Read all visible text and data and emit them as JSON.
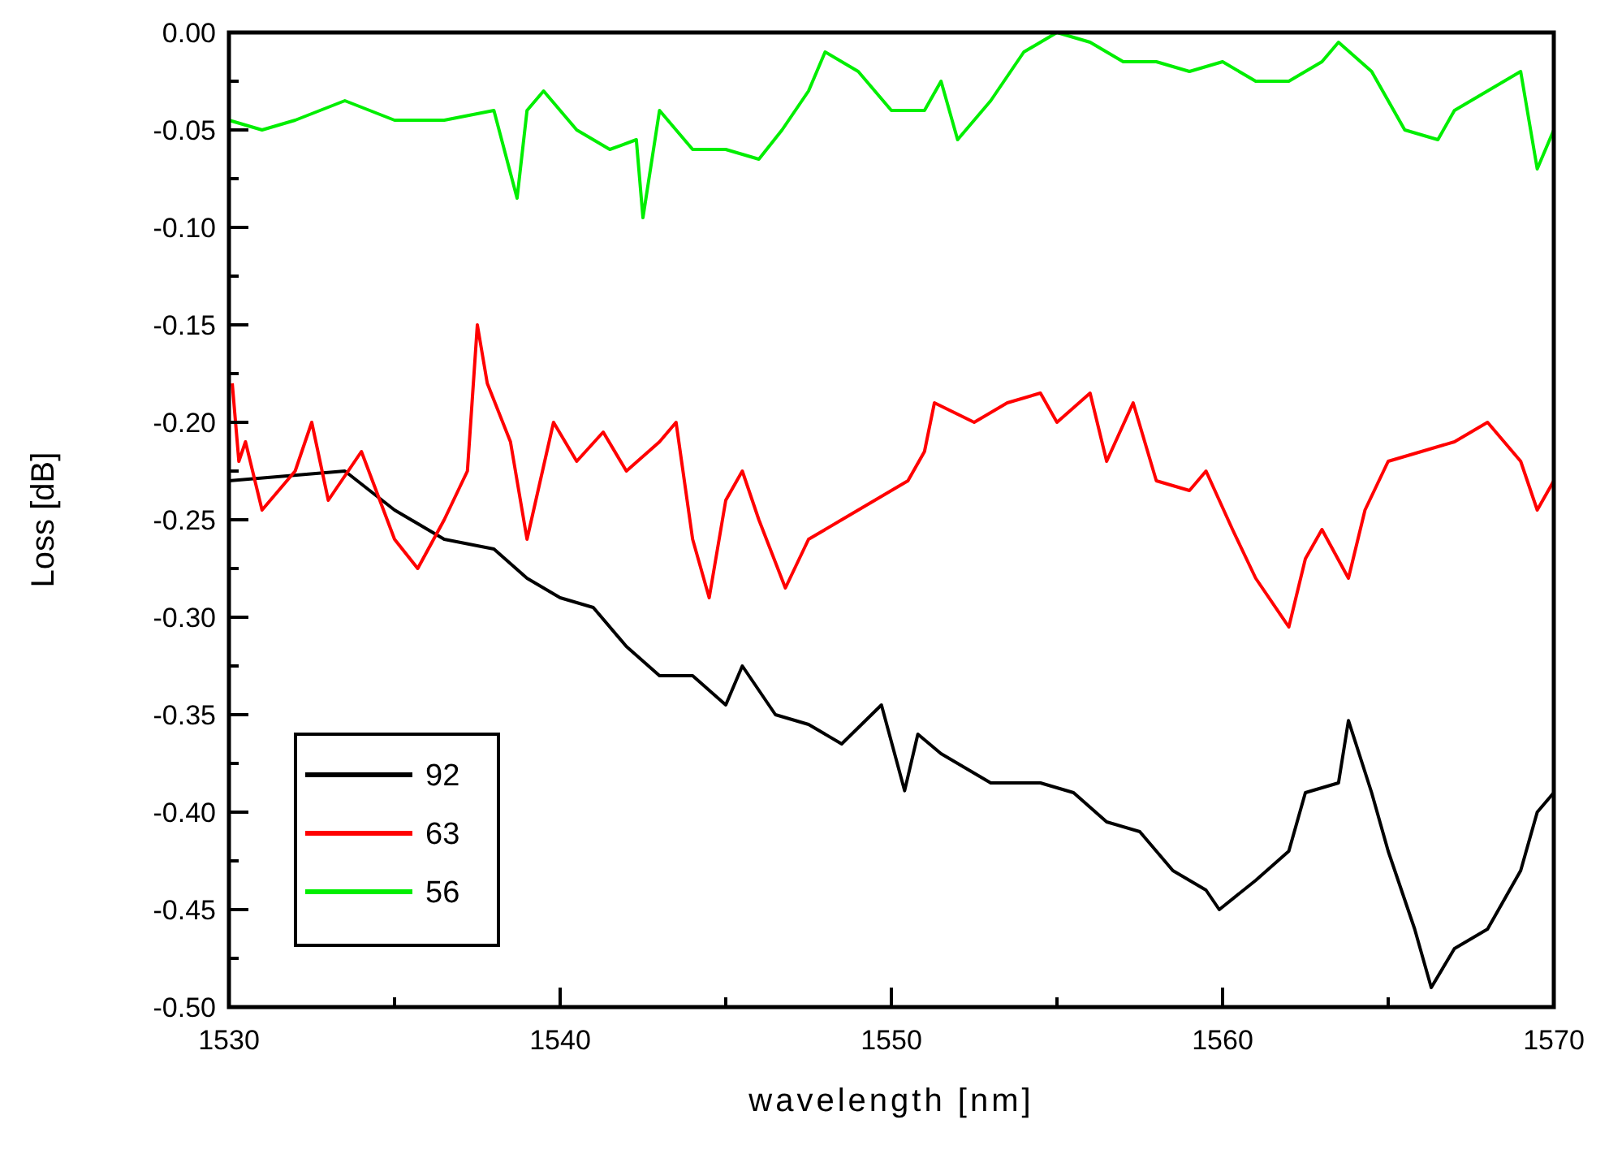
{
  "chart_data": {
    "type": "line",
    "xlabel": "wavelength [nm]",
    "ylabel": "Loss [dB]",
    "xlim": [
      1530,
      1570
    ],
    "xticks": [
      1530,
      {
        "value": 1535,
        "label": null
      },
      1540,
      {
        "value": 1545,
        "label": null
      },
      1550,
      {
        "value": 1555,
        "label": null
      },
      1560,
      {
        "value": 1565,
        "label": null
      },
      1570
    ],
    "ylim": [
      -0.5,
      0
    ],
    "yticks": [
      {
        "value": -0.5,
        "label": "-0.50"
      },
      {
        "value": -0.475,
        "label": null
      },
      {
        "value": -0.45,
        "label": "-0.45"
      },
      {
        "value": -0.425,
        "label": null
      },
      {
        "value": -0.4,
        "label": "-0.40"
      },
      {
        "value": -0.375,
        "label": null
      },
      {
        "value": -0.35,
        "label": "-0.35"
      },
      {
        "value": -0.325,
        "label": null
      },
      {
        "value": -0.3,
        "label": "-0.30"
      },
      {
        "value": -0.275,
        "label": null
      },
      {
        "value": -0.25,
        "label": "-0.25"
      },
      {
        "value": -0.225,
        "label": null
      },
      {
        "value": -0.2,
        "label": "-0.20"
      },
      {
        "value": -0.175,
        "label": null
      },
      {
        "value": -0.15,
        "label": "-0.15"
      },
      {
        "value": -0.125,
        "label": null
      },
      {
        "value": -0.1,
        "label": "-0.10"
      },
      {
        "value": -0.075,
        "label": null
      },
      {
        "value": -0.05,
        "label": "-0.05"
      },
      {
        "value": -0.025,
        "label": null
      },
      {
        "value": 0,
        "label": "0.00"
      }
    ],
    "legend": "bottom left",
    "marker": "none",
    "line_style": "solid",
    "series": [
      {
        "name": "92",
        "color": "#000000",
        "x": [
          1530,
          1533.5,
          1535,
          1536.5,
          1538,
          1539,
          1540,
          1541,
          1542,
          1543,
          1544,
          1545,
          1545.5,
          1546.5,
          1547.5,
          1548.5,
          1549.7,
          1550.4,
          1550.8,
          1551.5,
          1553,
          1554.5,
          1555.5,
          1556.5,
          1557.5,
          1558.5,
          1559.5,
          1559.9,
          1561,
          1562,
          1562.5,
          1563.5,
          1563.8,
          1564.5,
          1565,
          1565.8,
          1566.3,
          1567,
          1568,
          1569,
          1569.5,
          1570
        ],
        "values": [
          -0.23,
          -0.225,
          -0.245,
          -0.26,
          -0.265,
          -0.28,
          -0.29,
          -0.295,
          -0.315,
          -0.33,
          -0.33,
          -0.345,
          -0.325,
          -0.35,
          -0.355,
          -0.365,
          -0.345,
          -0.389,
          -0.36,
          -0.37,
          -0.385,
          -0.385,
          -0.39,
          -0.405,
          -0.41,
          -0.43,
          -0.44,
          -0.45,
          -0.435,
          -0.42,
          -0.39,
          -0.385,
          -0.353,
          -0.39,
          -0.42,
          -0.46,
          -0.49,
          -0.47,
          -0.46,
          -0.43,
          -0.4,
          -0.39
        ]
      },
      {
        "name": "63",
        "color": "#ff0000",
        "x": [
          1530.1,
          1530.3,
          1530.5,
          1531,
          1532,
          1532.5,
          1533,
          1534,
          1535,
          1535.7,
          1536.5,
          1537.2,
          1537.5,
          1537.8,
          1538.5,
          1539,
          1539.8,
          1540.5,
          1541.3,
          1542,
          1543,
          1543.5,
          1544,
          1544.5,
          1545,
          1545.5,
          1546,
          1546.8,
          1547.5,
          1548.5,
          1549.5,
          1550.5,
          1551,
          1551.3,
          1552.5,
          1553.5,
          1554.5,
          1555,
          1556,
          1556.5,
          1557.3,
          1558,
          1559,
          1559.5,
          1560.3,
          1561,
          1562,
          1562.5,
          1563,
          1563.8,
          1564.3,
          1565,
          1566,
          1567,
          1568,
          1569,
          1569.5,
          1570
        ],
        "values": [
          -0.18,
          -0.22,
          -0.21,
          -0.245,
          -0.225,
          -0.2,
          -0.24,
          -0.215,
          -0.26,
          -0.275,
          -0.25,
          -0.225,
          -0.15,
          -0.18,
          -0.21,
          -0.26,
          -0.2,
          -0.22,
          -0.205,
          -0.225,
          -0.21,
          -0.2,
          -0.26,
          -0.29,
          -0.24,
          -0.225,
          -0.25,
          -0.285,
          -0.26,
          -0.25,
          -0.24,
          -0.23,
          -0.215,
          -0.19,
          -0.2,
          -0.19,
          -0.185,
          -0.2,
          -0.185,
          -0.22,
          -0.19,
          -0.23,
          -0.235,
          -0.225,
          -0.255,
          -0.28,
          -0.305,
          -0.27,
          -0.255,
          -0.28,
          -0.245,
          -0.22,
          -0.215,
          -0.21,
          -0.2,
          -0.22,
          -0.245,
          -0.23
        ]
      },
      {
        "name": "56",
        "color": "#00ee00",
        "x": [
          1530,
          1531,
          1532,
          1533.5,
          1535,
          1536.5,
          1538,
          1538.7,
          1539,
          1539.5,
          1540.5,
          1541.5,
          1542.3,
          1542.5,
          1543,
          1544,
          1545,
          1546,
          1546.7,
          1547.5,
          1548,
          1549,
          1550,
          1551,
          1551.5,
          1552,
          1553,
          1554,
          1555,
          1556,
          1557,
          1558,
          1559,
          1560,
          1561,
          1562,
          1563,
          1563.5,
          1564.5,
          1565.5,
          1566.5,
          1567,
          1568,
          1569,
          1569.5,
          1570
        ],
        "values": [
          -0.045,
          -0.05,
          -0.045,
          -0.035,
          -0.045,
          -0.045,
          -0.04,
          -0.085,
          -0.04,
          -0.03,
          -0.05,
          -0.06,
          -0.055,
          -0.095,
          -0.04,
          -0.06,
          -0.06,
          -0.065,
          -0.05,
          -0.03,
          -0.01,
          -0.02,
          -0.04,
          -0.04,
          -0.025,
          -0.055,
          -0.035,
          -0.01,
          0,
          -0.005,
          -0.015,
          -0.015,
          -0.02,
          -0.015,
          -0.025,
          -0.025,
          -0.015,
          -0.005,
          -0.02,
          -0.05,
          -0.055,
          -0.04,
          -0.03,
          -0.02,
          -0.07,
          -0.05
        ]
      }
    ]
  }
}
